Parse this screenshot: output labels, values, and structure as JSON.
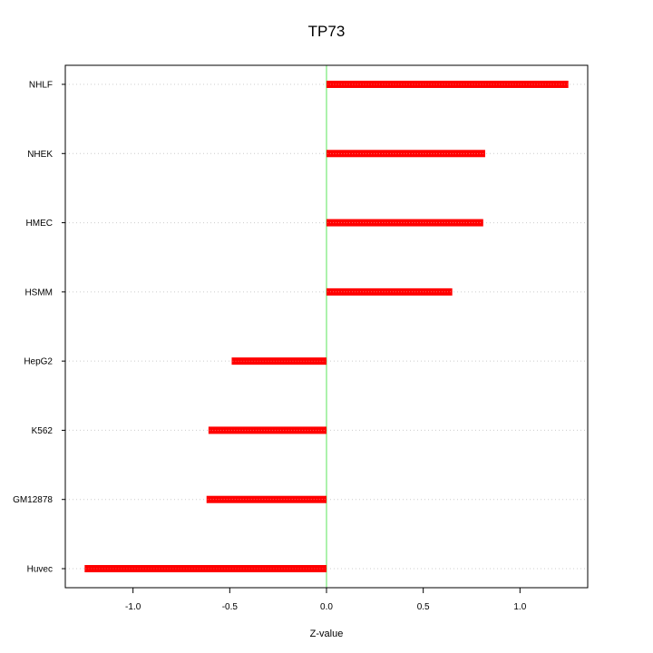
{
  "chart_data": {
    "type": "bar",
    "orientation": "horizontal",
    "title": "TP73",
    "xlabel": "Z-value",
    "ylabel": "",
    "categories": [
      "NHLF",
      "NHEK",
      "HMEC",
      "HSMM",
      "HepG2",
      "K562",
      "GM12878",
      "Huvec"
    ],
    "values": [
      1.25,
      0.82,
      0.81,
      0.65,
      -0.49,
      -0.61,
      -0.62,
      -1.25
    ],
    "xlim": [
      -1.35,
      1.35
    ],
    "xticks": [
      -1.0,
      -0.5,
      0.0,
      0.5,
      1.0
    ],
    "xtick_labels": [
      "-1.0",
      "-0.5",
      "0.0",
      "0.5",
      "1.0"
    ],
    "grid": "horizontal dotted at categories",
    "reference_line": 0.0,
    "colors": {
      "bar": "#ff0000",
      "reference_line": "#90ee90",
      "grid": "#cccccc",
      "axis": "#000000"
    }
  }
}
